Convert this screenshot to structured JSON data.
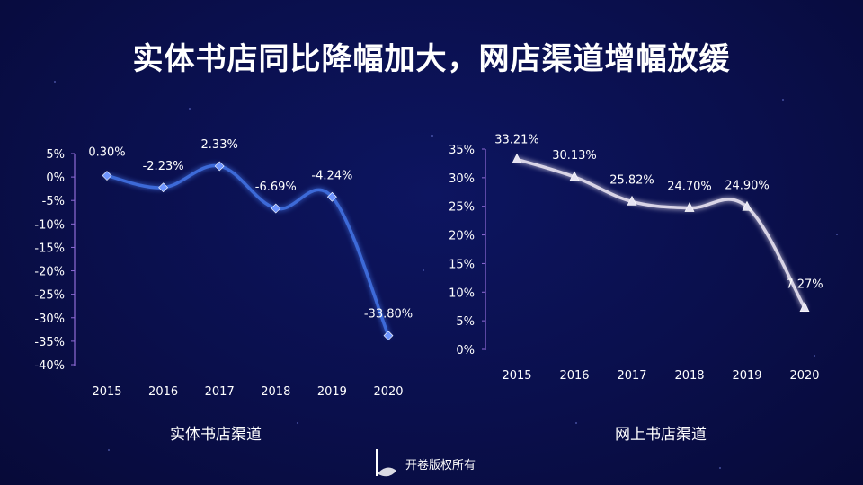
{
  "title": "实体书店同比降幅加大，网店渠道增幅放缓",
  "footer": "开卷版权所有",
  "colors": {
    "left_line": "#3d6bd8",
    "left_glow": "#5b8cff",
    "right_line": "#d9d4e6",
    "right_glow": "#a9a4c8",
    "axis": "#8f6bd6",
    "text": "#ffffff"
  },
  "chart_data": [
    {
      "type": "line",
      "title": "实体书店渠道",
      "categories": [
        "2015",
        "2016",
        "2017",
        "2018",
        "2019",
        "2020"
      ],
      "values": [
        0.3,
        -2.23,
        2.33,
        -6.69,
        -4.24,
        -33.8
      ],
      "labels": [
        "0.30%",
        "-2.23%",
        "2.33%",
        "-6.69%",
        "-4.24%",
        "-33.80%"
      ],
      "yticks": [
        "5%",
        "0%",
        "-5%",
        "-10%",
        "-15%",
        "-20%",
        "-25%",
        "-30%",
        "-35%",
        "-40%"
      ],
      "ylim": [
        -40,
        5
      ],
      "marker": "diamond"
    },
    {
      "type": "line",
      "title": "网上书店渠道",
      "categories": [
        "2015",
        "2016",
        "2017",
        "2018",
        "2019",
        "2020"
      ],
      "values": [
        33.21,
        30.13,
        25.82,
        24.7,
        24.9,
        7.27
      ],
      "labels": [
        "33.21%",
        "30.13%",
        "25.82%",
        "24.70%",
        "24.90%",
        "7.27%"
      ],
      "yticks": [
        "35%",
        "30%",
        "25%",
        "20%",
        "15%",
        "10%",
        "5%",
        "0%"
      ],
      "ylim": [
        0,
        35
      ],
      "marker": "triangle"
    }
  ]
}
